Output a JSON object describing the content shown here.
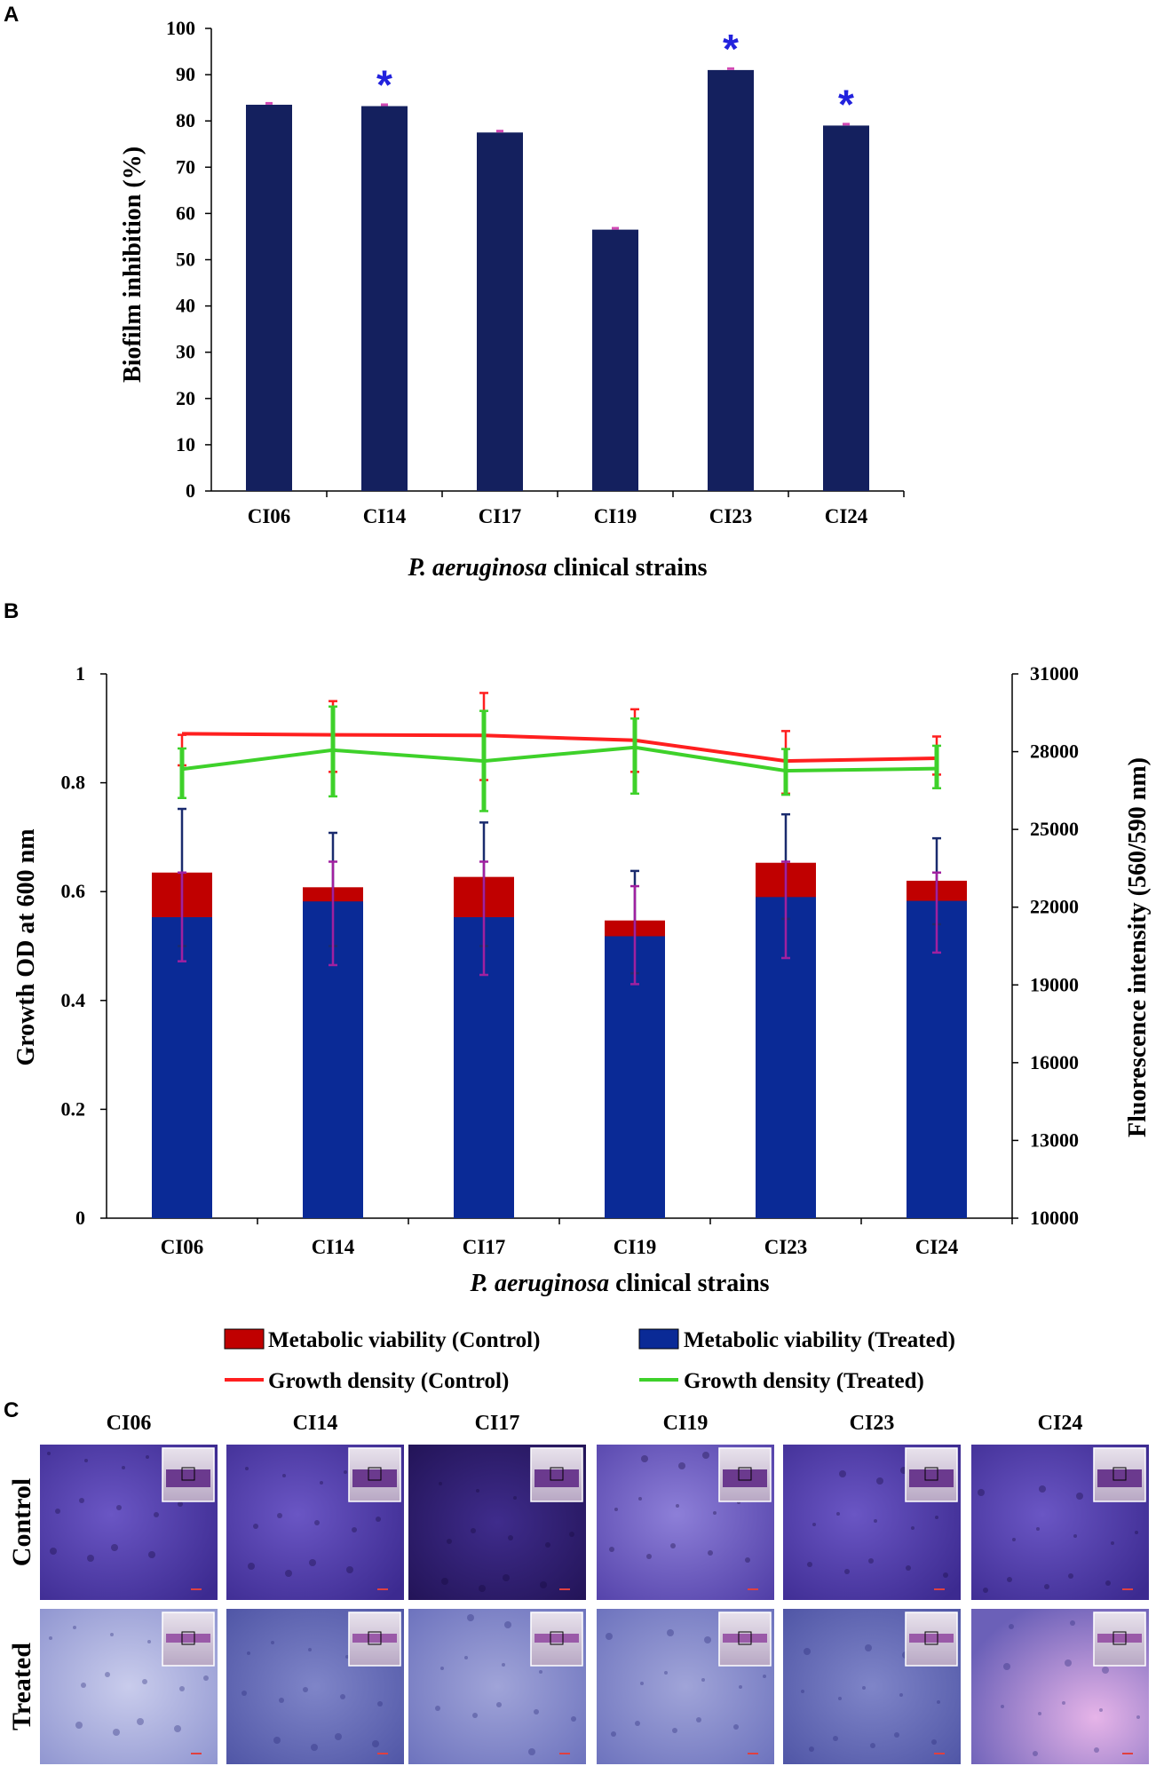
{
  "panel_labels": {
    "a": "A",
    "b": "B",
    "c": "C"
  },
  "chart_data": [
    {
      "type": "bar",
      "title": "",
      "categories": [
        "CI06",
        "CI14",
        "CI17",
        "CI19",
        "CI23",
        "CI24"
      ],
      "values": [
        83.5,
        83.2,
        77.5,
        56.5,
        91.0,
        79.0
      ],
      "errors": [
        0.3,
        0.3,
        0.3,
        0.3,
        0.3,
        0.3
      ],
      "significant": [
        false,
        true,
        false,
        false,
        true,
        true
      ],
      "sig_marker": "*",
      "ylabel": "Biofilm inhibition (%)",
      "xlabel_italic": "P. aeruginosa",
      "xlabel_rest": " clinical strains",
      "ylim": [
        0,
        100
      ],
      "yticks": [
        "0",
        "10",
        "20",
        "30",
        "40",
        "50",
        "60",
        "70",
        "80",
        "90",
        "100"
      ],
      "colors": {
        "bar": "#14205e",
        "error": "#d24ab4",
        "star": "#2222dd"
      }
    },
    {
      "type": "bar+line",
      "categories": [
        "CI06",
        "CI14",
        "CI17",
        "CI19",
        "CI23",
        "CI24"
      ],
      "series": [
        {
          "name": "Metabolic viability (Control)",
          "kind": "bar",
          "axis": "left",
          "values": [
            0.635,
            0.608,
            0.627,
            0.547,
            0.653,
            0.62
          ],
          "error_high": [
            0.752,
            0.708,
            0.727,
            0.638,
            0.742,
            0.698
          ],
          "error_low": [
            0.5,
            0.5,
            0.5,
            0.45,
            0.55,
            0.54
          ],
          "color": "#c00000",
          "error_color": "#1a2b6e"
        },
        {
          "name": "Metabolic viability (Treated)",
          "kind": "bar",
          "axis": "left",
          "values": [
            0.553,
            0.582,
            0.553,
            0.518,
            0.59,
            0.583
          ],
          "error_high": [
            0.635,
            0.655,
            0.655,
            0.61,
            0.655,
            0.635
          ],
          "error_low": [
            0.472,
            0.465,
            0.447,
            0.43,
            0.478,
            0.488
          ],
          "color": "#0a2a96",
          "error_color": "#a020a0"
        },
        {
          "name": "Growth density (Control)",
          "kind": "line",
          "axis": "left",
          "values": [
            0.89,
            0.888,
            0.887,
            0.878,
            0.84,
            0.845
          ],
          "error_high": [
            0.888,
            0.95,
            0.965,
            0.935,
            0.895,
            0.885
          ],
          "error_low": [
            0.832,
            0.82,
            0.805,
            0.82,
            0.78,
            0.815
          ],
          "color": "#ff1f1f"
        },
        {
          "name": "Growth density (Treated)",
          "kind": "line",
          "axis": "left",
          "values": [
            0.825,
            0.86,
            0.84,
            0.865,
            0.822,
            0.826
          ],
          "error_high": [
            0.863,
            0.94,
            0.932,
            0.918,
            0.862,
            0.868
          ],
          "error_low": [
            0.772,
            0.775,
            0.748,
            0.78,
            0.778,
            0.79
          ],
          "color": "#3ed12a"
        }
      ],
      "ylabel": "Growth OD at 600 nm",
      "y2label": "Fluorescence intensity (560/590 nm)",
      "xlabel_italic": "P. aeruginosa",
      "xlabel_rest": " clinical strains",
      "ylim": [
        0,
        1
      ],
      "yticks": [
        "0",
        "0.2",
        "0.4",
        "0.6",
        "0.8",
        "1"
      ],
      "y2lim": [
        10000,
        31000
      ],
      "y2ticks": [
        "10000",
        "13000",
        "16000",
        "19000",
        "22000",
        "25000",
        "28000",
        "31000"
      ],
      "legend": [
        "Metabolic viability (Control)",
        "Metabolic viability (Treated)",
        "Growth density (Control)",
        "Growth density (Treated)"
      ]
    }
  ],
  "micrographs": {
    "columns": [
      "CI06",
      "CI14",
      "CI17",
      "CI19",
      "CI23",
      "CI24"
    ],
    "rows": [
      "Control",
      "Treated"
    ]
  }
}
